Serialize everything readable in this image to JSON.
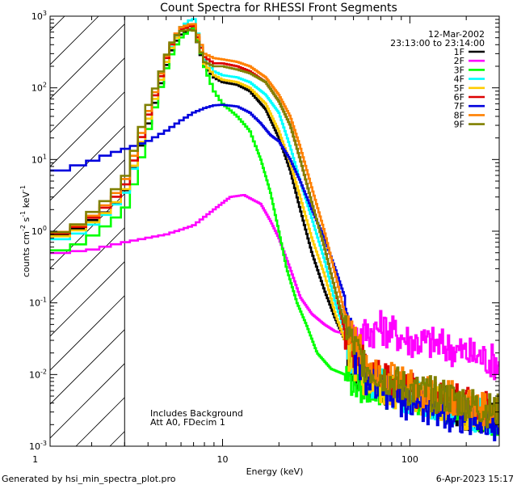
{
  "chart_data": {
    "type": "line",
    "title": "Count Spectra for RHESSI Front Segments",
    "xlabel": "Energy (keV)",
    "ylabel_parts": [
      "counts cm",
      "-2",
      " s",
      "-1",
      " keV",
      "-1"
    ],
    "x_scale": "log",
    "y_scale": "log",
    "xlim": [
      1.2,
      300
    ],
    "ylim": [
      0.001,
      1000
    ],
    "x_ticks": [
      {
        "value": 1,
        "label": "1"
      },
      {
        "value": 10,
        "label": "10"
      },
      {
        "value": 100,
        "label": "100"
      }
    ],
    "y_ticks": [
      {
        "value": 1000,
        "base": "10",
        "exp": "3"
      },
      {
        "value": 100,
        "base": "10",
        "exp": "2"
      },
      {
        "value": 10,
        "base": "10",
        "exp": "1"
      },
      {
        "value": 1,
        "base": "10",
        "exp": "0"
      },
      {
        "value": 0.1,
        "base": "10",
        "exp": "-1"
      },
      {
        "value": 0.01,
        "base": "10",
        "exp": "-2"
      },
      {
        "value": 0.001,
        "base": "10",
        "exp": "-3"
      }
    ],
    "date": "12-Mar-2002",
    "time_range": "23:13:00 to 23:14:00",
    "excluded_region_max_kev": 3,
    "annotations": [
      "Includes Background",
      "Att A0, FDecim 1"
    ],
    "footer_left": "Generated by hsi_min_spectra_plot.pro",
    "footer_right": "6-Apr-2023 15:17",
    "series": [
      {
        "name": "1F",
        "color": "#000000",
        "points": [
          [
            1.2,
            0.8
          ],
          [
            1.6,
            1.0
          ],
          [
            2.0,
            1.4
          ],
          [
            2.5,
            2.0
          ],
          [
            3.0,
            3.5
          ],
          [
            3.5,
            10
          ],
          [
            4.0,
            30
          ],
          [
            4.5,
            80
          ],
          [
            5.0,
            200
          ],
          [
            5.5,
            400
          ],
          [
            6.0,
            550
          ],
          [
            7.0,
            700
          ],
          [
            8.0,
            200
          ],
          [
            9.0,
            140
          ],
          [
            10,
            120
          ],
          [
            12,
            110
          ],
          [
            14,
            90
          ],
          [
            17,
            50
          ],
          [
            20,
            20
          ],
          [
            23,
            7
          ],
          [
            26,
            2.0
          ],
          [
            30,
            0.5
          ],
          [
            35,
            0.15
          ],
          [
            40,
            0.06
          ],
          [
            45,
            0.03
          ],
          [
            50,
            0.01
          ],
          [
            60,
            0.008
          ],
          [
            80,
            0.006
          ],
          [
            100,
            0.005
          ],
          [
            150,
            0.004
          ],
          [
            200,
            0.003
          ],
          [
            280,
            0.0025
          ]
        ]
      },
      {
        "name": "2F",
        "color": "#ff00ff",
        "points": [
          [
            1.2,
            0.48
          ],
          [
            2,
            0.55
          ],
          [
            3,
            0.7
          ],
          [
            5,
            0.9
          ],
          [
            7,
            1.2
          ],
          [
            9,
            2.0
          ],
          [
            11,
            3.0
          ],
          [
            13,
            3.2
          ],
          [
            16,
            2.4
          ],
          [
            18,
            1.4
          ],
          [
            20,
            0.8
          ],
          [
            23,
            0.3
          ],
          [
            26,
            0.12
          ],
          [
            30,
            0.07
          ],
          [
            35,
            0.05
          ],
          [
            40,
            0.04
          ],
          [
            50,
            0.035
          ],
          [
            60,
            0.04
          ],
          [
            70,
            0.045
          ],
          [
            80,
            0.04
          ],
          [
            100,
            0.03
          ],
          [
            130,
            0.028
          ],
          [
            160,
            0.024
          ],
          [
            200,
            0.02
          ],
          [
            250,
            0.017
          ],
          [
            290,
            0.015
          ]
        ]
      },
      {
        "name": "3F",
        "color": "#00ff00",
        "points": [
          [
            1.2,
            0.5
          ],
          [
            1.6,
            0.6
          ],
          [
            2.0,
            0.85
          ],
          [
            2.5,
            1.3
          ],
          [
            3.0,
            2.0
          ],
          [
            3.5,
            6
          ],
          [
            4.0,
            25
          ],
          [
            4.5,
            70
          ],
          [
            5.0,
            180
          ],
          [
            5.5,
            350
          ],
          [
            6.0,
            500
          ],
          [
            7.0,
            700
          ],
          [
            7.5,
            400
          ],
          [
            8,
            200
          ],
          [
            9,
            90
          ],
          [
            10,
            60
          ],
          [
            12,
            40
          ],
          [
            14,
            25
          ],
          [
            16,
            10
          ],
          [
            18,
            3.5
          ],
          [
            20,
            1.0
          ],
          [
            22,
            0.3
          ],
          [
            25,
            0.1
          ],
          [
            28,
            0.05
          ],
          [
            32,
            0.02
          ],
          [
            38,
            0.012
          ],
          [
            45,
            0.01
          ],
          [
            55,
            0.007
          ],
          [
            70,
            0.006
          ],
          [
            100,
            0.005
          ],
          [
            150,
            0.004
          ],
          [
            200,
            0.003
          ],
          [
            280,
            0.0025
          ]
        ]
      },
      {
        "name": "4F",
        "color": "#00ffff",
        "points": [
          [
            1.2,
            0.72
          ],
          [
            1.6,
            0.85
          ],
          [
            2.0,
            1.2
          ],
          [
            2.5,
            1.9
          ],
          [
            3.0,
            3.2
          ],
          [
            3.5,
            10
          ],
          [
            4.0,
            35
          ],
          [
            4.5,
            90
          ],
          [
            5.0,
            220
          ],
          [
            5.5,
            450
          ],
          [
            6.0,
            700
          ],
          [
            7.0,
            950
          ],
          [
            8.0,
            250
          ],
          [
            9,
            170
          ],
          [
            10,
            150
          ],
          [
            12,
            140
          ],
          [
            14,
            120
          ],
          [
            17,
            80
          ],
          [
            20,
            45
          ],
          [
            23,
            15
          ],
          [
            26,
            5
          ],
          [
            30,
            1.5
          ],
          [
            35,
            0.4
          ],
          [
            40,
            0.1
          ],
          [
            45,
            0.04
          ],
          [
            50,
            0.015
          ],
          [
            60,
            0.009
          ],
          [
            80,
            0.006
          ],
          [
            100,
            0.005
          ],
          [
            150,
            0.004
          ],
          [
            200,
            0.003
          ],
          [
            280,
            0.0025
          ]
        ]
      },
      {
        "name": "5F",
        "color": "#ffcc00",
        "points": [
          [
            1.2,
            0.78
          ],
          [
            1.6,
            0.95
          ],
          [
            2.0,
            1.3
          ],
          [
            2.5,
            2.0
          ],
          [
            3.0,
            3.6
          ],
          [
            3.5,
            11
          ],
          [
            4.0,
            35
          ],
          [
            4.5,
            90
          ],
          [
            5.0,
            220
          ],
          [
            5.5,
            430
          ],
          [
            6.0,
            620
          ],
          [
            7.0,
            800
          ],
          [
            8.0,
            220
          ],
          [
            9,
            150
          ],
          [
            10,
            130
          ],
          [
            12,
            120
          ],
          [
            14,
            100
          ],
          [
            17,
            60
          ],
          [
            20,
            25
          ],
          [
            23,
            9
          ],
          [
            26,
            3
          ],
          [
            30,
            0.8
          ],
          [
            35,
            0.25
          ],
          [
            40,
            0.07
          ],
          [
            45,
            0.03
          ],
          [
            50,
            0.012
          ],
          [
            60,
            0.008
          ],
          [
            80,
            0.006
          ],
          [
            100,
            0.005
          ],
          [
            150,
            0.004
          ],
          [
            200,
            0.003
          ],
          [
            280,
            0.0025
          ]
        ]
      },
      {
        "name": "6F",
        "color": "#dd0000",
        "points": [
          [
            1.2,
            0.85
          ],
          [
            1.6,
            1.05
          ],
          [
            2.0,
            1.5
          ],
          [
            2.5,
            2.4
          ],
          [
            3.0,
            4.2
          ],
          [
            3.5,
            13
          ],
          [
            4.0,
            40
          ],
          [
            4.5,
            100
          ],
          [
            5.0,
            250
          ],
          [
            5.5,
            480
          ],
          [
            6.0,
            650
          ],
          [
            7.0,
            750
          ],
          [
            8.0,
            270
          ],
          [
            9,
            220
          ],
          [
            10,
            220
          ],
          [
            12,
            200
          ],
          [
            14,
            170
          ],
          [
            17,
            120
          ],
          [
            20,
            65
          ],
          [
            23,
            30
          ],
          [
            26,
            10
          ],
          [
            30,
            2.5
          ],
          [
            35,
            0.6
          ],
          [
            40,
            0.15
          ],
          [
            45,
            0.04
          ],
          [
            50,
            0.02
          ],
          [
            60,
            0.012
          ],
          [
            80,
            0.008
          ],
          [
            100,
            0.006
          ],
          [
            150,
            0.005
          ],
          [
            200,
            0.004
          ],
          [
            280,
            0.003
          ]
        ]
      },
      {
        "name": "7F",
        "color": "#0000dd",
        "points": [
          [
            1.2,
            6.5
          ],
          [
            1.5,
            7.5
          ],
          [
            2.0,
            9.5
          ],
          [
            2.5,
            12
          ],
          [
            3.0,
            14
          ],
          [
            4.0,
            18
          ],
          [
            5.0,
            25
          ],
          [
            6.0,
            35
          ],
          [
            7.0,
            45
          ],
          [
            8.0,
            52
          ],
          [
            9,
            57
          ],
          [
            10,
            58
          ],
          [
            12,
            55
          ],
          [
            14,
            45
          ],
          [
            16,
            32
          ],
          [
            18,
            22
          ],
          [
            20,
            18
          ],
          [
            23,
            10
          ],
          [
            26,
            5
          ],
          [
            30,
            2
          ],
          [
            35,
            0.8
          ],
          [
            40,
            0.3
          ],
          [
            45,
            0.12
          ],
          [
            50,
            0.02
          ],
          [
            60,
            0.008
          ],
          [
            80,
            0.005
          ],
          [
            100,
            0.004
          ],
          [
            150,
            0.003
          ],
          [
            200,
            0.0025
          ],
          [
            280,
            0.002
          ]
        ]
      },
      {
        "name": "8F",
        "color": "#ff8000",
        "points": [
          [
            1.2,
            0.9
          ],
          [
            1.6,
            1.1
          ],
          [
            2.0,
            1.6
          ],
          [
            2.5,
            2.6
          ],
          [
            3.0,
            5
          ],
          [
            3.5,
            15
          ],
          [
            4.0,
            45
          ],
          [
            4.5,
            110
          ],
          [
            5.0,
            270
          ],
          [
            5.5,
            500
          ],
          [
            6.0,
            700
          ],
          [
            7.0,
            800
          ],
          [
            8.0,
            300
          ],
          [
            9,
            260
          ],
          [
            10,
            250
          ],
          [
            12,
            230
          ],
          [
            14,
            200
          ],
          [
            17,
            140
          ],
          [
            20,
            80
          ],
          [
            23,
            40
          ],
          [
            26,
            15
          ],
          [
            30,
            4
          ],
          [
            35,
            1.0
          ],
          [
            40,
            0.25
          ],
          [
            45,
            0.07
          ],
          [
            50,
            0.03
          ],
          [
            60,
            0.015
          ],
          [
            80,
            0.009
          ],
          [
            100,
            0.007
          ],
          [
            150,
            0.005
          ],
          [
            200,
            0.004
          ],
          [
            280,
            0.003
          ]
        ]
      },
      {
        "name": "9F",
        "color": "#808000",
        "points": [
          [
            1.2,
            0.88
          ],
          [
            1.6,
            1.1
          ],
          [
            2.0,
            1.8
          ],
          [
            2.5,
            3.0
          ],
          [
            3.0,
            5.5
          ],
          [
            3.5,
            18
          ],
          [
            4.0,
            55
          ],
          [
            4.5,
            120
          ],
          [
            5.0,
            280
          ],
          [
            5.5,
            500
          ],
          [
            6.0,
            620
          ],
          [
            7.0,
            650
          ],
          [
            8.0,
            230
          ],
          [
            9,
            200
          ],
          [
            10,
            200
          ],
          [
            12,
            180
          ],
          [
            14,
            160
          ],
          [
            17,
            120
          ],
          [
            20,
            65
          ],
          [
            23,
            30
          ],
          [
            26,
            10
          ],
          [
            30,
            2.5
          ],
          [
            35,
            0.6
          ],
          [
            40,
            0.15
          ],
          [
            45,
            0.05
          ],
          [
            50,
            0.025
          ],
          [
            60,
            0.012
          ],
          [
            80,
            0.008
          ],
          [
            100,
            0.006
          ],
          [
            150,
            0.005
          ],
          [
            200,
            0.004
          ],
          [
            280,
            0.003
          ]
        ]
      }
    ]
  }
}
